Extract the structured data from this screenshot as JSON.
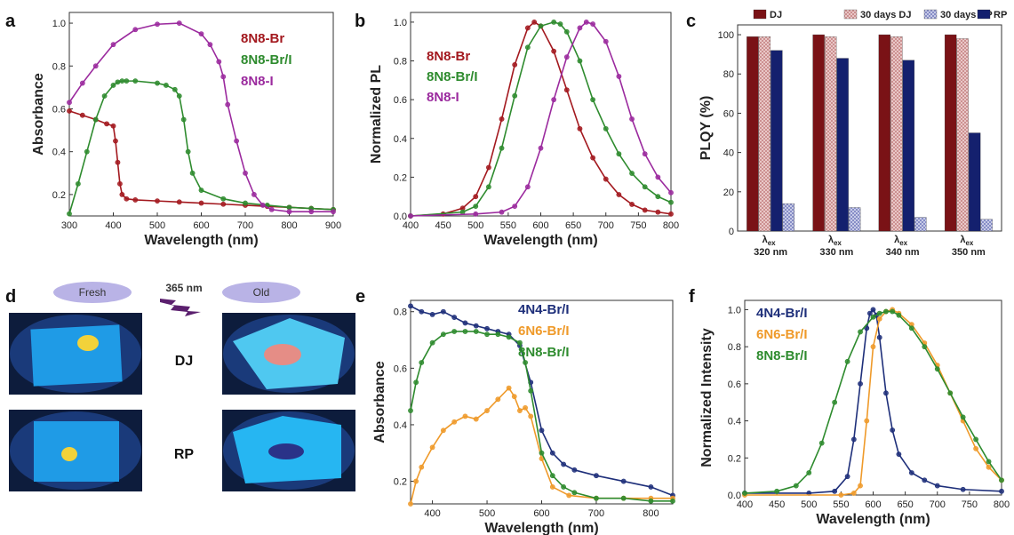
{
  "colors": {
    "br": "#a3191f",
    "brl": "#2e8b2e",
    "i": "#9b2a9e",
    "n4": "#1e2f7a",
    "n6": "#ef9a2a",
    "dj": "#7a1216",
    "rp": "#14206e",
    "djold": "#c98a8a",
    "rpold": "#7f86c2"
  },
  "panels": {
    "a": {
      "label": "a"
    },
    "b": {
      "label": "b"
    },
    "c": {
      "label": "c"
    },
    "d": {
      "label": "d"
    },
    "e": {
      "label": "e"
    },
    "f": {
      "label": "f"
    }
  },
  "panel_d": {
    "fresh": "Fresh",
    "old": "Old",
    "uv": "365 nm",
    "dj": "DJ",
    "rp": "RP"
  },
  "chart_data": [
    {
      "id": "a",
      "type": "line",
      "xlabel": "Wavelength (nm)",
      "ylabel": "Absorbance",
      "xlim": [
        300,
        900
      ],
      "ylim": [
        0.1,
        1.05
      ],
      "xticks": [
        300,
        400,
        500,
        600,
        700,
        800,
        900
      ],
      "yticks": [
        0.2,
        0.4,
        0.6,
        0.8,
        1.0
      ],
      "legend_position": "top-right",
      "series": [
        {
          "name": "8N8-Br",
          "color_key": "br",
          "x": [
            300,
            330,
            360,
            385,
            400,
            405,
            410,
            415,
            420,
            430,
            450,
            500,
            550,
            600,
            650,
            700,
            750,
            800,
            850,
            900
          ],
          "y": [
            0.59,
            0.57,
            0.55,
            0.53,
            0.52,
            0.45,
            0.35,
            0.25,
            0.2,
            0.18,
            0.175,
            0.17,
            0.165,
            0.16,
            0.155,
            0.15,
            0.145,
            0.14,
            0.135,
            0.13
          ]
        },
        {
          "name": "8N8-Br/I",
          "color_key": "brl",
          "x": [
            300,
            320,
            340,
            360,
            380,
            400,
            410,
            420,
            430,
            450,
            500,
            520,
            540,
            550,
            560,
            570,
            580,
            600,
            650,
            700,
            750,
            800,
            850,
            900
          ],
          "y": [
            0.11,
            0.25,
            0.4,
            0.55,
            0.66,
            0.71,
            0.725,
            0.73,
            0.73,
            0.73,
            0.72,
            0.71,
            0.69,
            0.66,
            0.55,
            0.4,
            0.3,
            0.22,
            0.18,
            0.16,
            0.15,
            0.14,
            0.135,
            0.13
          ]
        },
        {
          "name": "8N8-I",
          "color_key": "i",
          "x": [
            300,
            330,
            360,
            400,
            450,
            500,
            550,
            600,
            620,
            640,
            650,
            660,
            680,
            700,
            720,
            740,
            760,
            800,
            850,
            900
          ],
          "y": [
            0.63,
            0.72,
            0.8,
            0.9,
            0.97,
            0.995,
            1.0,
            0.95,
            0.9,
            0.82,
            0.75,
            0.62,
            0.45,
            0.3,
            0.2,
            0.15,
            0.13,
            0.12,
            0.12,
            0.12
          ]
        }
      ]
    },
    {
      "id": "b",
      "type": "line",
      "xlabel": "Wavelength (nm)",
      "ylabel": "Normalized PL",
      "xlim": [
        400,
        800
      ],
      "ylim": [
        0,
        1.05
      ],
      "xticks": [
        400,
        450,
        500,
        550,
        600,
        650,
        700,
        750,
        800
      ],
      "yticks": [
        0.0,
        0.2,
        0.4,
        0.6,
        0.8,
        1.0
      ],
      "legend_position": "top-left",
      "series": [
        {
          "name": "8N8-Br",
          "color_key": "br",
          "x": [
            400,
            450,
            480,
            500,
            520,
            540,
            560,
            580,
            590,
            600,
            620,
            640,
            660,
            680,
            700,
            720,
            740,
            760,
            780,
            800
          ],
          "y": [
            0.0,
            0.01,
            0.04,
            0.1,
            0.25,
            0.5,
            0.78,
            0.97,
            1.0,
            0.98,
            0.85,
            0.65,
            0.45,
            0.3,
            0.19,
            0.11,
            0.06,
            0.03,
            0.02,
            0.01
          ]
        },
        {
          "name": "8N8-Br/I",
          "color_key": "brl",
          "x": [
            400,
            480,
            500,
            520,
            540,
            560,
            580,
            600,
            620,
            630,
            640,
            660,
            680,
            700,
            720,
            740,
            760,
            780,
            800
          ],
          "y": [
            0.0,
            0.02,
            0.05,
            0.15,
            0.35,
            0.62,
            0.87,
            0.98,
            1.0,
            0.99,
            0.95,
            0.8,
            0.6,
            0.45,
            0.32,
            0.22,
            0.15,
            0.1,
            0.07
          ]
        },
        {
          "name": "8N8-I",
          "color_key": "i",
          "x": [
            400,
            500,
            540,
            560,
            580,
            600,
            620,
            640,
            660,
            670,
            680,
            700,
            720,
            740,
            760,
            780,
            800
          ],
          "y": [
            0.0,
            0.01,
            0.02,
            0.05,
            0.15,
            0.35,
            0.6,
            0.82,
            0.97,
            1.0,
            0.99,
            0.9,
            0.72,
            0.5,
            0.32,
            0.2,
            0.12
          ]
        }
      ]
    },
    {
      "id": "c",
      "type": "bar",
      "ylabel": "PLQY (%)",
      "ylim": [
        0,
        105
      ],
      "yticks": [
        0,
        20,
        40,
        60,
        80,
        100
      ],
      "legend_position": "top",
      "categories": [
        {
          "lambda": "λ",
          "sub": "ex",
          "nm": "320 nm"
        },
        {
          "lambda": "λ",
          "sub": "ex",
          "nm": "330 nm"
        },
        {
          "lambda": "λ",
          "sub": "ex",
          "nm": "340 nm"
        },
        {
          "lambda": "λ",
          "sub": "ex",
          "nm": "350 nm"
        }
      ],
      "series": [
        {
          "name": "DJ",
          "color_key": "dj",
          "values": [
            99,
            100,
            100,
            100
          ]
        },
        {
          "name": "30 days DJ",
          "color_key": "djold",
          "values": [
            99,
            99,
            99,
            98
          ]
        },
        {
          "name": "RP",
          "color_key": "rp",
          "values": [
            92,
            88,
            87,
            50
          ]
        },
        {
          "name": "30 days RP",
          "color_key": "rpold",
          "values": [
            14,
            12,
            7,
            6
          ]
        }
      ],
      "legend_order": [
        "DJ",
        "30 days DJ",
        "30 days RP",
        "RP"
      ]
    },
    {
      "id": "e",
      "type": "line",
      "xlabel": "Wavelength (nm)",
      "ylabel": "Absorbance",
      "xlim": [
        360,
        840
      ],
      "ylim": [
        0.12,
        0.84
      ],
      "xticks": [
        400,
        500,
        600,
        700,
        800
      ],
      "yticks": [
        0.2,
        0.4,
        0.6,
        0.8
      ],
      "legend_position": "top-right",
      "series": [
        {
          "name": "4N4-Br/I",
          "color_key": "n4",
          "x": [
            360,
            380,
            400,
            420,
            440,
            460,
            480,
            500,
            520,
            540,
            560,
            580,
            600,
            620,
            640,
            660,
            700,
            750,
            800,
            840
          ],
          "y": [
            0.82,
            0.8,
            0.79,
            0.8,
            0.78,
            0.76,
            0.75,
            0.74,
            0.73,
            0.72,
            0.68,
            0.55,
            0.38,
            0.3,
            0.26,
            0.24,
            0.22,
            0.2,
            0.18,
            0.15
          ]
        },
        {
          "name": "6N6-Br/I",
          "color_key": "n6",
          "x": [
            360,
            370,
            380,
            400,
            420,
            440,
            460,
            480,
            500,
            520,
            540,
            550,
            560,
            570,
            580,
            600,
            620,
            650,
            700,
            750,
            800,
            840
          ],
          "y": [
            0.12,
            0.2,
            0.25,
            0.32,
            0.38,
            0.41,
            0.43,
            0.42,
            0.45,
            0.49,
            0.53,
            0.5,
            0.45,
            0.46,
            0.43,
            0.28,
            0.18,
            0.15,
            0.14,
            0.14,
            0.14,
            0.14
          ]
        },
        {
          "name": "8N8-Br/I",
          "color_key": "brl",
          "x": [
            360,
            370,
            380,
            400,
            420,
            440,
            460,
            480,
            500,
            520,
            540,
            560,
            570,
            580,
            600,
            620,
            640,
            660,
            700,
            750,
            800,
            840
          ],
          "y": [
            0.45,
            0.55,
            0.62,
            0.69,
            0.72,
            0.73,
            0.73,
            0.73,
            0.72,
            0.72,
            0.71,
            0.69,
            0.62,
            0.52,
            0.3,
            0.22,
            0.18,
            0.16,
            0.14,
            0.14,
            0.13,
            0.13
          ]
        }
      ]
    },
    {
      "id": "f",
      "type": "line",
      "xlabel": "Wavelength (nm)",
      "ylabel": "Normalized Intensity",
      "xlim": [
        400,
        800
      ],
      "ylim": [
        0,
        1.05
      ],
      "xticks": [
        400,
        450,
        500,
        550,
        600,
        650,
        700,
        750,
        800
      ],
      "yticks": [
        0.0,
        0.2,
        0.4,
        0.6,
        0.8,
        1.0
      ],
      "legend_position": "top-left",
      "series": [
        {
          "name": "4N4-Br/I",
          "color_key": "n4",
          "x": [
            400,
            500,
            540,
            560,
            570,
            580,
            590,
            595,
            600,
            605,
            610,
            620,
            630,
            640,
            660,
            680,
            700,
            740,
            800
          ],
          "y": [
            0.01,
            0.01,
            0.02,
            0.1,
            0.3,
            0.6,
            0.9,
            0.98,
            1.0,
            0.97,
            0.85,
            0.55,
            0.35,
            0.22,
            0.12,
            0.08,
            0.05,
            0.03,
            0.02
          ]
        },
        {
          "name": "6N6-Br/I",
          "color_key": "n6",
          "x": [
            400,
            550,
            570,
            580,
            590,
            600,
            610,
            620,
            630,
            640,
            660,
            680,
            700,
            720,
            740,
            760,
            780,
            800
          ],
          "y": [
            0.0,
            0.0,
            0.01,
            0.05,
            0.4,
            0.8,
            0.95,
            0.99,
            1.0,
            0.98,
            0.92,
            0.82,
            0.7,
            0.55,
            0.4,
            0.25,
            0.15,
            0.08
          ]
        },
        {
          "name": "8N8-Br/I",
          "color_key": "brl",
          "x": [
            400,
            450,
            480,
            500,
            520,
            540,
            560,
            580,
            600,
            610,
            620,
            630,
            640,
            660,
            680,
            700,
            720,
            740,
            760,
            780,
            800
          ],
          "y": [
            0.01,
            0.02,
            0.05,
            0.12,
            0.28,
            0.5,
            0.72,
            0.88,
            0.96,
            0.98,
            0.99,
            0.99,
            0.97,
            0.9,
            0.8,
            0.68,
            0.55,
            0.42,
            0.3,
            0.18,
            0.08
          ]
        }
      ]
    }
  ]
}
